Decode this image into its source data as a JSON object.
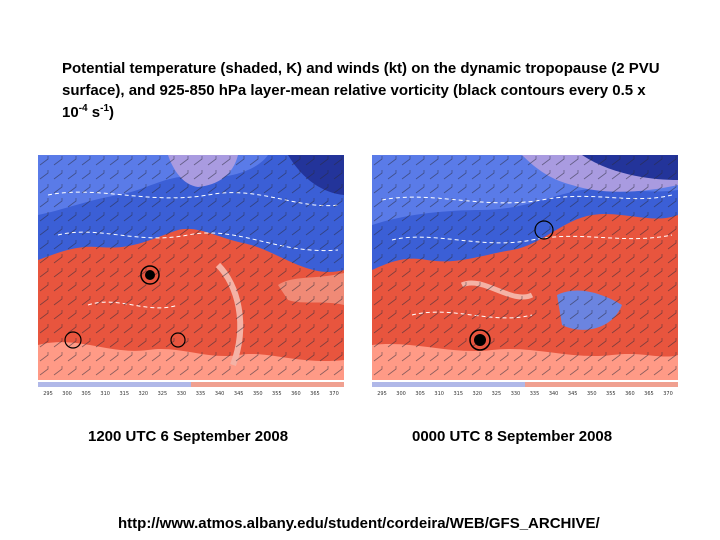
{
  "title": {
    "part1": "Potential temperature (shaded, K) and winds (kt) on the dynamic tropopause (2 PVU surface), and 925-850 hPa layer-mean relative vorticity (black contours every 0.5 x 10",
    "exp1": "-4",
    "part2": " s",
    "exp2": "-1",
    "part3": ")"
  },
  "maps": [
    {
      "caption": "1200 UTC 6 September 2008"
    },
    {
      "caption": "0000 UTC 8 September 2008"
    }
  ],
  "colorbar_ticks": [
    "295",
    "300",
    "305",
    "310",
    "315",
    "320",
    "325",
    "330",
    "335",
    "340",
    "345",
    "350",
    "355",
    "360",
    "365",
    "370"
  ],
  "colors": {
    "cold": "#3b5fd6",
    "deep_cold": "#23349a",
    "warm": "#e8553e",
    "hot": "#ff9a86",
    "purple": "#a99be0"
  },
  "source_url": "http://www.atmos.albany.edu/student/cordeira/WEB/GFS_ARCHIVE/"
}
